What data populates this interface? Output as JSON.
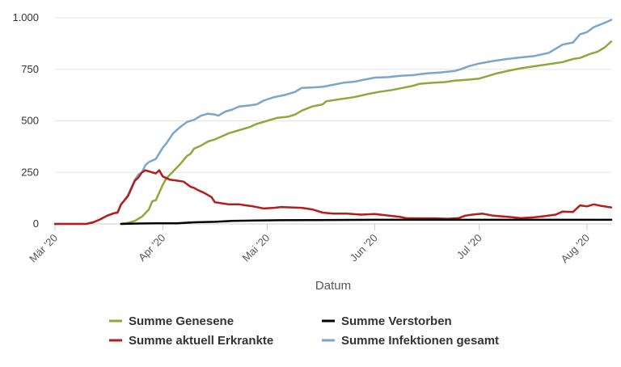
{
  "chart_data": {
    "type": "line",
    "xlabel": "Datum",
    "ylabel": "",
    "ylim": [
      0,
      1000
    ],
    "yticks": [
      {
        "value": 0,
        "label": "0"
      },
      {
        "value": 250,
        "label": "250"
      },
      {
        "value": 500,
        "label": "500"
      },
      {
        "value": 750,
        "label": "750"
      },
      {
        "value": 1000,
        "label": "1.000"
      }
    ],
    "xlim": [
      "2020-03-01",
      "2020-08-08"
    ],
    "xticks": [
      {
        "date": "2020-03-01",
        "label": "Mär '20"
      },
      {
        "date": "2020-04-01",
        "label": "Apr '20"
      },
      {
        "date": "2020-05-01",
        "label": "Mai '20"
      },
      {
        "date": "2020-06-01",
        "label": "Jun '20"
      },
      {
        "date": "2020-07-01",
        "label": "Jul '20"
      },
      {
        "date": "2020-08-01",
        "label": "Aug '20"
      }
    ],
    "grid": "horizontal",
    "legend_position": "bottom",
    "series": [
      {
        "name": "Summe Infektionen gesamt",
        "color": "#7aa6cc",
        "points": [
          [
            "2020-03-01",
            0
          ],
          [
            "2020-03-10",
            0
          ],
          [
            "2020-03-12",
            8
          ],
          [
            "2020-03-14",
            22
          ],
          [
            "2020-03-16",
            40
          ],
          [
            "2020-03-18",
            52
          ],
          [
            "2020-03-19",
            55
          ],
          [
            "2020-03-20",
            95
          ],
          [
            "2020-03-21",
            115
          ],
          [
            "2020-03-22",
            140
          ],
          [
            "2020-03-24",
            215
          ],
          [
            "2020-03-25",
            240
          ],
          [
            "2020-03-26",
            250
          ],
          [
            "2020-03-27",
            285
          ],
          [
            "2020-03-28",
            300
          ],
          [
            "2020-03-30",
            315
          ],
          [
            "2020-04-01",
            370
          ],
          [
            "2020-04-02",
            390
          ],
          [
            "2020-04-04",
            440
          ],
          [
            "2020-04-06",
            470
          ],
          [
            "2020-04-08",
            495
          ],
          [
            "2020-04-10",
            505
          ],
          [
            "2020-04-12",
            525
          ],
          [
            "2020-04-14",
            535
          ],
          [
            "2020-04-16",
            530
          ],
          [
            "2020-04-17",
            525
          ],
          [
            "2020-04-19",
            545
          ],
          [
            "2020-04-21",
            555
          ],
          [
            "2020-04-23",
            570
          ],
          [
            "2020-04-26",
            575
          ],
          [
            "2020-04-28",
            580
          ],
          [
            "2020-04-30",
            598
          ],
          [
            "2020-05-03",
            615
          ],
          [
            "2020-05-06",
            625
          ],
          [
            "2020-05-09",
            640
          ],
          [
            "2020-05-11",
            660
          ],
          [
            "2020-05-14",
            662
          ],
          [
            "2020-05-17",
            665
          ],
          [
            "2020-05-20",
            675
          ],
          [
            "2020-05-23",
            685
          ],
          [
            "2020-05-26",
            690
          ],
          [
            "2020-05-29",
            700
          ],
          [
            "2020-06-01",
            710
          ],
          [
            "2020-06-05",
            712
          ],
          [
            "2020-06-08",
            718
          ],
          [
            "2020-06-12",
            722
          ],
          [
            "2020-06-16",
            730
          ],
          [
            "2020-06-20",
            735
          ],
          [
            "2020-06-24",
            742
          ],
          [
            "2020-06-26",
            752
          ],
          [
            "2020-06-28",
            765
          ],
          [
            "2020-07-01",
            778
          ],
          [
            "2020-07-05",
            790
          ],
          [
            "2020-07-09",
            800
          ],
          [
            "2020-07-13",
            808
          ],
          [
            "2020-07-17",
            815
          ],
          [
            "2020-07-21",
            830
          ],
          [
            "2020-07-23",
            850
          ],
          [
            "2020-07-25",
            870
          ],
          [
            "2020-07-28",
            880
          ],
          [
            "2020-07-30",
            920
          ],
          [
            "2020-08-01",
            930
          ],
          [
            "2020-08-03",
            955
          ],
          [
            "2020-08-06",
            975
          ],
          [
            "2020-08-08",
            990
          ]
        ]
      },
      {
        "name": "Summe Genesene",
        "color": "#8fa83c",
        "points": [
          [
            "2020-03-20",
            0
          ],
          [
            "2020-03-22",
            5
          ],
          [
            "2020-03-24",
            15
          ],
          [
            "2020-03-26",
            35
          ],
          [
            "2020-03-28",
            70
          ],
          [
            "2020-03-29",
            110
          ],
          [
            "2020-03-30",
            115
          ],
          [
            "2020-04-01",
            190
          ],
          [
            "2020-04-02",
            220
          ],
          [
            "2020-04-04",
            255
          ],
          [
            "2020-04-06",
            290
          ],
          [
            "2020-04-08",
            330
          ],
          [
            "2020-04-09",
            340
          ],
          [
            "2020-04-10",
            365
          ],
          [
            "2020-04-12",
            380
          ],
          [
            "2020-04-14",
            400
          ],
          [
            "2020-04-16",
            410
          ],
          [
            "2020-04-18",
            425
          ],
          [
            "2020-04-20",
            440
          ],
          [
            "2020-04-23",
            455
          ],
          [
            "2020-04-26",
            470
          ],
          [
            "2020-04-28",
            485
          ],
          [
            "2020-05-01",
            500
          ],
          [
            "2020-05-04",
            515
          ],
          [
            "2020-05-07",
            520
          ],
          [
            "2020-05-09",
            530
          ],
          [
            "2020-05-11",
            550
          ],
          [
            "2020-05-14",
            570
          ],
          [
            "2020-05-17",
            580
          ],
          [
            "2020-05-18",
            595
          ],
          [
            "2020-05-22",
            605
          ],
          [
            "2020-05-26",
            615
          ],
          [
            "2020-05-30",
            630
          ],
          [
            "2020-06-02",
            640
          ],
          [
            "2020-06-06",
            650
          ],
          [
            "2020-06-09",
            660
          ],
          [
            "2020-06-12",
            670
          ],
          [
            "2020-06-14",
            680
          ],
          [
            "2020-06-18",
            685
          ],
          [
            "2020-06-21",
            688
          ],
          [
            "2020-06-24",
            695
          ],
          [
            "2020-06-28",
            700
          ],
          [
            "2020-07-01",
            705
          ],
          [
            "2020-07-03",
            715
          ],
          [
            "2020-07-06",
            730
          ],
          [
            "2020-07-10",
            745
          ],
          [
            "2020-07-13",
            755
          ],
          [
            "2020-07-17",
            765
          ],
          [
            "2020-07-21",
            775
          ],
          [
            "2020-07-25",
            785
          ],
          [
            "2020-07-28",
            800
          ],
          [
            "2020-07-30",
            805
          ],
          [
            "2020-08-02",
            825
          ],
          [
            "2020-08-04",
            835
          ],
          [
            "2020-08-06",
            855
          ],
          [
            "2020-08-08",
            885
          ]
        ]
      },
      {
        "name": "Summe aktuell Erkrankte",
        "color": "#b51c1c",
        "points": [
          [
            "2020-03-01",
            0
          ],
          [
            "2020-03-10",
            0
          ],
          [
            "2020-03-12",
            8
          ],
          [
            "2020-03-14",
            22
          ],
          [
            "2020-03-16",
            40
          ],
          [
            "2020-03-18",
            52
          ],
          [
            "2020-03-19",
            55
          ],
          [
            "2020-03-20",
            95
          ],
          [
            "2020-03-21",
            115
          ],
          [
            "2020-03-22",
            135
          ],
          [
            "2020-03-24",
            210
          ],
          [
            "2020-03-25",
            225
          ],
          [
            "2020-03-26",
            250
          ],
          [
            "2020-03-27",
            260
          ],
          [
            "2020-03-29",
            250
          ],
          [
            "2020-03-30",
            245
          ],
          [
            "2020-03-31",
            260
          ],
          [
            "2020-04-01",
            230
          ],
          [
            "2020-04-03",
            215
          ],
          [
            "2020-04-05",
            210
          ],
          [
            "2020-04-07",
            205
          ],
          [
            "2020-04-09",
            180
          ],
          [
            "2020-04-10",
            175
          ],
          [
            "2020-04-11",
            165
          ],
          [
            "2020-04-13",
            150
          ],
          [
            "2020-04-15",
            130
          ],
          [
            "2020-04-16",
            105
          ],
          [
            "2020-04-18",
            100
          ],
          [
            "2020-04-20",
            95
          ],
          [
            "2020-04-23",
            95
          ],
          [
            "2020-04-25",
            90
          ],
          [
            "2020-04-27",
            85
          ],
          [
            "2020-04-30",
            75
          ],
          [
            "2020-05-03",
            78
          ],
          [
            "2020-05-05",
            82
          ],
          [
            "2020-05-08",
            80
          ],
          [
            "2020-05-11",
            78
          ],
          [
            "2020-05-14",
            70
          ],
          [
            "2020-05-17",
            55
          ],
          [
            "2020-05-20",
            50
          ],
          [
            "2020-05-24",
            50
          ],
          [
            "2020-05-28",
            45
          ],
          [
            "2020-06-01",
            48
          ],
          [
            "2020-06-04",
            42
          ],
          [
            "2020-06-08",
            35
          ],
          [
            "2020-06-10",
            28
          ],
          [
            "2020-06-14",
            27
          ],
          [
            "2020-06-18",
            27
          ],
          [
            "2020-06-22",
            25
          ],
          [
            "2020-06-25",
            28
          ],
          [
            "2020-06-27",
            40
          ],
          [
            "2020-06-29",
            45
          ],
          [
            "2020-07-02",
            50
          ],
          [
            "2020-07-05",
            40
          ],
          [
            "2020-07-09",
            35
          ],
          [
            "2020-07-13",
            28
          ],
          [
            "2020-07-17",
            32
          ],
          [
            "2020-07-20",
            38
          ],
          [
            "2020-07-23",
            45
          ],
          [
            "2020-07-25",
            60
          ],
          [
            "2020-07-28",
            58
          ],
          [
            "2020-07-30",
            90
          ],
          [
            "2020-08-01",
            85
          ],
          [
            "2020-08-03",
            95
          ],
          [
            "2020-08-05",
            88
          ],
          [
            "2020-08-08",
            80
          ]
        ]
      },
      {
        "name": "Summe Verstorben",
        "color": "#000000",
        "points": [
          [
            "2020-03-20",
            0
          ],
          [
            "2020-03-25",
            2
          ],
          [
            "2020-03-30",
            3
          ],
          [
            "2020-04-05",
            3
          ],
          [
            "2020-04-10",
            8
          ],
          [
            "2020-04-16",
            10
          ],
          [
            "2020-04-21",
            15
          ],
          [
            "2020-04-28",
            17
          ],
          [
            "2020-05-05",
            18
          ],
          [
            "2020-05-15",
            19
          ],
          [
            "2020-06-01",
            20
          ],
          [
            "2020-07-01",
            20
          ],
          [
            "2020-08-08",
            20
          ]
        ]
      }
    ],
    "legend": [
      {
        "series": "Summe Genesene",
        "color": "#8fa83c"
      },
      {
        "series": "Summe Verstorben",
        "color": "#000000"
      },
      {
        "series": "Summe aktuell Erkrankte",
        "color": "#b51c1c"
      },
      {
        "series": "Summe Infektionen gesamt",
        "color": "#7aa6cc"
      }
    ]
  }
}
